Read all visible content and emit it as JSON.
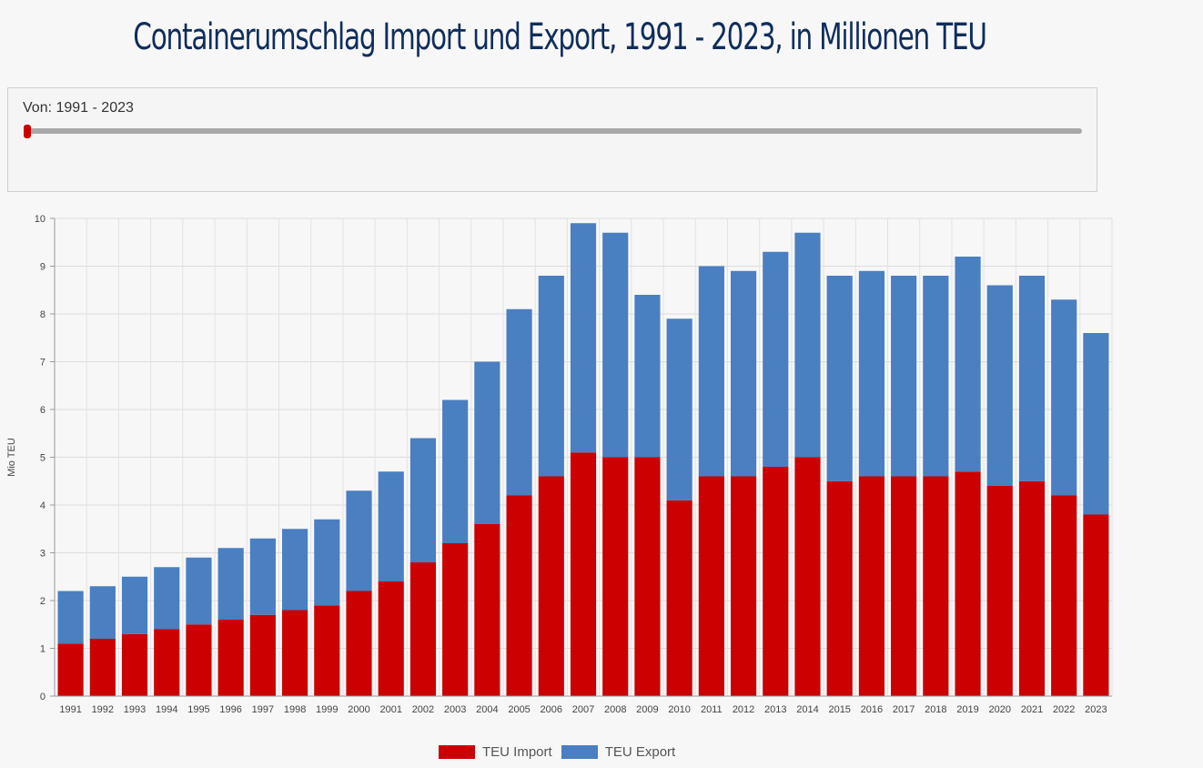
{
  "page": {
    "title": "Containerumschlag Import und Export, 1991 - 2023, in Millionen TEU"
  },
  "slider": {
    "label": "Von: 1991 - 2023"
  },
  "colors": {
    "import": "#cc0000",
    "export": "#4a7fc1",
    "slider_handle": "#cc0000"
  },
  "chart_data": {
    "type": "bar",
    "stacked": true,
    "ylabel": "Mio TEU",
    "ylim": [
      0,
      10
    ],
    "yticks": [
      0,
      1,
      2,
      3,
      4,
      5,
      6,
      7,
      8,
      9,
      10
    ],
    "grid": true,
    "legend_position": "bottom",
    "categories": [
      "1991",
      "1992",
      "1993",
      "1994",
      "1995",
      "1996",
      "1997",
      "1998",
      "1999",
      "2000",
      "2001",
      "2002",
      "2003",
      "2004",
      "2005",
      "2006",
      "2007",
      "2008",
      "2009",
      "2010",
      "2011",
      "2012",
      "2013",
      "2014",
      "2015",
      "2016",
      "2017",
      "2018",
      "2019",
      "2020",
      "2021",
      "2022",
      "2023"
    ],
    "series": [
      {
        "name": "TEU Import",
        "color": "#cc0000",
        "values": [
          1.1,
          1.2,
          1.3,
          1.4,
          1.5,
          1.6,
          1.7,
          1.8,
          1.9,
          2.2,
          2.4,
          2.8,
          3.2,
          3.6,
          4.2,
          4.6,
          5.1,
          5.0,
          5.0,
          4.1,
          4.6,
          4.6,
          4.8,
          5.0,
          4.5,
          4.6,
          4.6,
          4.6,
          4.7,
          4.4,
          4.5,
          4.2,
          3.8
        ]
      },
      {
        "name": "TEU Export",
        "color": "#4a7fc1",
        "values": [
          1.1,
          1.1,
          1.2,
          1.3,
          1.4,
          1.5,
          1.6,
          1.7,
          1.8,
          2.1,
          2.3,
          2.6,
          3.0,
          3.4,
          3.9,
          4.2,
          4.8,
          4.7,
          3.4,
          3.8,
          4.4,
          4.3,
          4.5,
          4.7,
          4.3,
          4.3,
          4.2,
          4.2,
          4.5,
          4.2,
          4.3,
          4.1,
          3.8
        ]
      }
    ]
  }
}
